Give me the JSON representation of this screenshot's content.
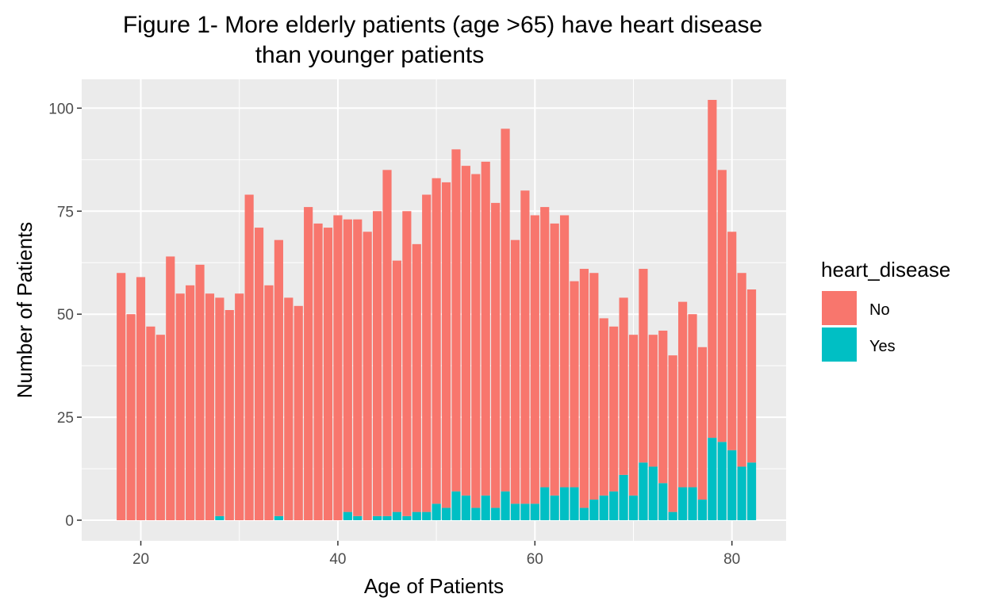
{
  "chart_data": {
    "type": "bar",
    "stacked": true,
    "title": [
      "Figure 1- More elderly patients (age >65) have heart disease",
      "than younger patients"
    ],
    "xlabel": "Age of Patients",
    "ylabel": "Number of Patients",
    "xlim": [
      14.0,
      85.5
    ],
    "ylim": [
      -5,
      107
    ],
    "xticks": [
      20,
      40,
      60,
      80
    ],
    "yticks": [
      0,
      25,
      50,
      75,
      100
    ],
    "grid": true,
    "legend": {
      "title": "heart_disease",
      "position": "right"
    },
    "colors": {
      "No": "#F8766D",
      "Yes": "#00BFC4",
      "panel": "#EBEBEB",
      "grid": "#FFFFFF"
    },
    "x": [
      18,
      19,
      20,
      21,
      22,
      23,
      24,
      25,
      26,
      27,
      28,
      29,
      30,
      31,
      32,
      33,
      34,
      35,
      36,
      37,
      38,
      39,
      40,
      41,
      42,
      43,
      44,
      45,
      46,
      47,
      48,
      49,
      50,
      51,
      52,
      53,
      54,
      55,
      56,
      57,
      58,
      59,
      60,
      61,
      62,
      63,
      64,
      65,
      66,
      67,
      68,
      69,
      70,
      71,
      72,
      73,
      74,
      75,
      76,
      77,
      78,
      79,
      80,
      81,
      82
    ],
    "series": [
      {
        "name": "No",
        "values": [
          60,
          50,
          59,
          47,
          45,
          64,
          55,
          57,
          62,
          55,
          53,
          51,
          55,
          79,
          71,
          57,
          67,
          54,
          52,
          76,
          72,
          71,
          74,
          71,
          72,
          70,
          74,
          84,
          61,
          74,
          65,
          77,
          79,
          79,
          83,
          80,
          81,
          81,
          74,
          88,
          64,
          76,
          70,
          68,
          66,
          66,
          50,
          58,
          55,
          43,
          40,
          43,
          39,
          47,
          32,
          37,
          38,
          45,
          42,
          37,
          82,
          66,
          53,
          47,
          42
        ]
      },
      {
        "name": "Yes",
        "values": [
          0,
          0,
          0,
          0,
          0,
          0,
          0,
          0,
          0,
          0,
          1,
          0,
          0,
          0,
          0,
          0,
          1,
          0,
          0,
          0,
          0,
          0,
          0,
          2,
          1,
          0,
          1,
          1,
          2,
          1,
          2,
          2,
          4,
          3,
          7,
          6,
          3,
          6,
          3,
          7,
          4,
          4,
          4,
          8,
          6,
          8,
          8,
          3,
          5,
          6,
          7,
          11,
          6,
          14,
          13,
          9,
          2,
          8,
          8,
          5,
          20,
          19,
          17,
          13,
          14
        ]
      }
    ]
  }
}
